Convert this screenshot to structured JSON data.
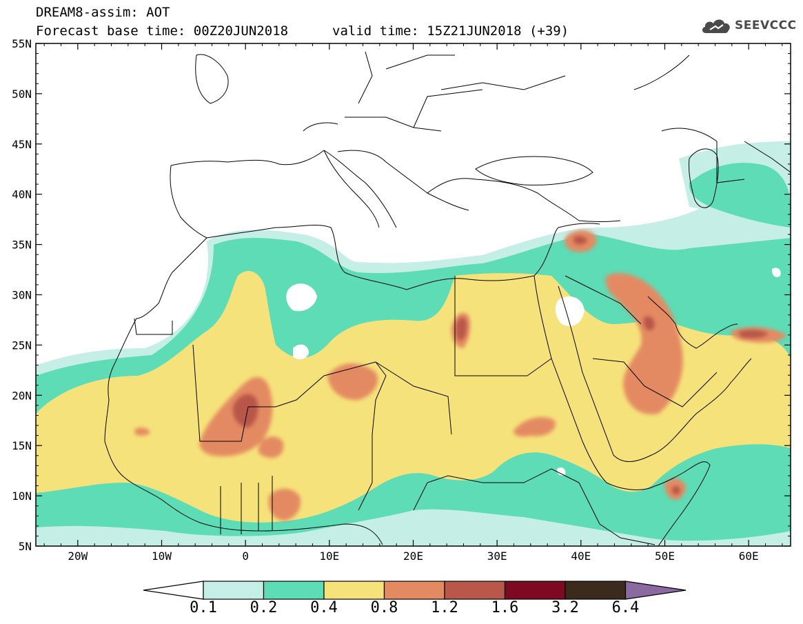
{
  "header": {
    "model_title": "DREAM8-assim: AOT",
    "base_time": "Forecast base time: 00Z20JUN2018",
    "valid_time": "valid time: 15Z21JUN2018 (+39)",
    "logo_text": "SEEVCCC"
  },
  "axes": {
    "lat_labels": [
      "55N",
      "50N",
      "45N",
      "40N",
      "35N",
      "30N",
      "25N",
      "20N",
      "15N",
      "10N",
      "5N"
    ],
    "lon_labels": [
      "20W",
      "10W",
      "0",
      "10E",
      "20E",
      "30E",
      "40E",
      "50E",
      "60E"
    ]
  },
  "colorbar": {
    "levels": [
      "0.1",
      "0.2",
      "0.4",
      "0.8",
      "1.2",
      "1.6",
      "3.2",
      "6.4"
    ],
    "colors": [
      "#c4eee6",
      "#5ddcb6",
      "#f6e27a",
      "#e48a62",
      "#b8574a",
      "#7e0a22",
      "#3c2a1c",
      "#8a6aa0"
    ],
    "under_color": "#ffffff"
  },
  "chart_data": {
    "type": "heatmap",
    "title": "DREAM8-assim: AOT",
    "variable": "Aerosol optical thickness",
    "lon_range": [
      -25,
      65
    ],
    "lat_range": [
      5,
      55
    ],
    "contour_levels": [
      0.1,
      0.2,
      0.4,
      0.8,
      1.2,
      1.6,
      3.2,
      6.4
    ],
    "hotspots": [
      {
        "lon": 0,
        "lat": 19,
        "max_class": "1.6"
      },
      {
        "lon": 15,
        "lat": 21,
        "max_class": "1.2"
      },
      {
        "lon": 25.5,
        "lat": 26.5,
        "max_class": "1.6"
      },
      {
        "lon": 47,
        "lat": 27,
        "max_class": "1.6"
      },
      {
        "lon": 40,
        "lat": 35,
        "max_class": "1.6"
      },
      {
        "lon": 57,
        "lat": 26,
        "max_class": "1.6"
      },
      {
        "lon": 51,
        "lat": 10.5,
        "max_class": "1.6"
      },
      {
        "lon": 5,
        "lat": 10,
        "max_class": "1.2"
      },
      {
        "lon": -3,
        "lat": 15.5,
        "max_class": "1.2"
      },
      {
        "lon": 45,
        "lat": 21,
        "max_class": "1.2"
      }
    ]
  }
}
